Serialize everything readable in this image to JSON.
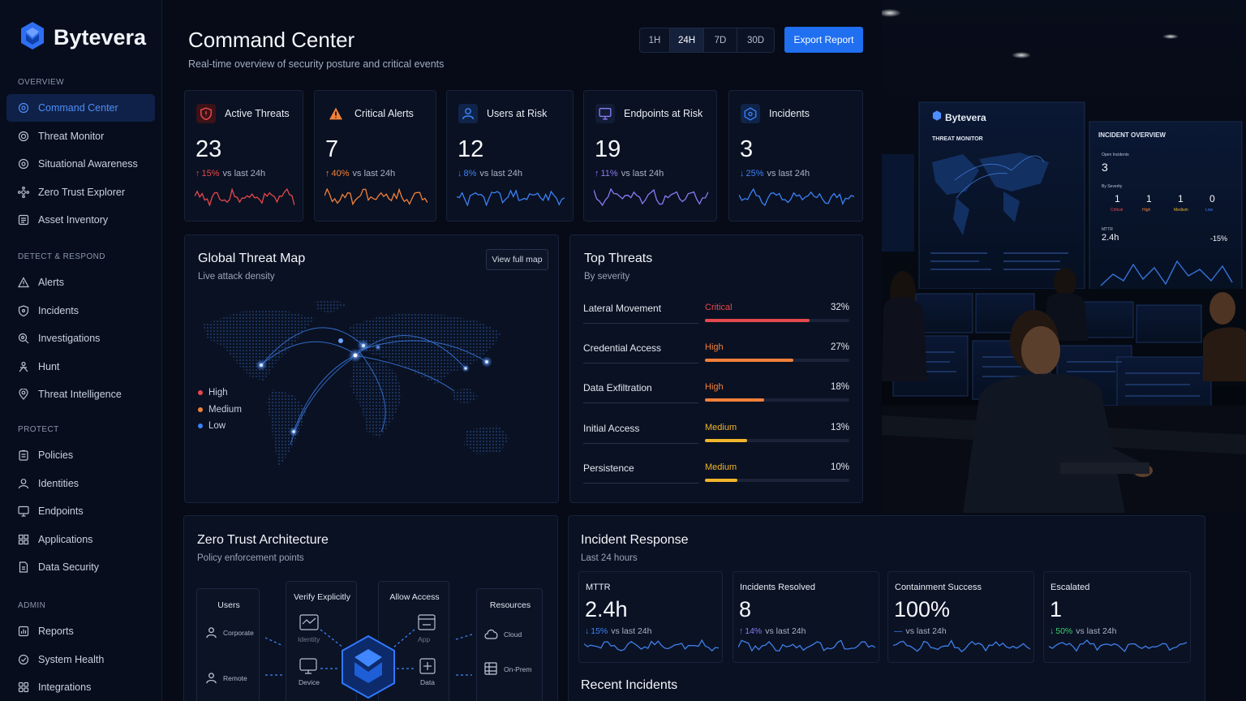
{
  "brand": {
    "name": "Bytevera"
  },
  "sidebar": {
    "sections": [
      {
        "label": "OVERVIEW",
        "items": [
          {
            "label": "Command Center",
            "icon": "target-icon",
            "active": true
          },
          {
            "label": "Threat Monitor",
            "icon": "radar-icon"
          },
          {
            "label": "Situational Awareness",
            "icon": "eye-icon"
          },
          {
            "label": "Zero Trust Explorer",
            "icon": "network-icon"
          },
          {
            "label": "Asset Inventory",
            "icon": "list-icon"
          }
        ]
      },
      {
        "label": "DETECT & RESPOND",
        "items": [
          {
            "label": "Alerts",
            "icon": "warning-icon"
          },
          {
            "label": "Incidents",
            "icon": "shield-icon"
          },
          {
            "label": "Investigations",
            "icon": "search-icon"
          },
          {
            "label": "Hunt",
            "icon": "crosshair-icon"
          },
          {
            "label": "Threat Intelligence",
            "icon": "location-icon"
          }
        ]
      },
      {
        "label": "PROTECT",
        "items": [
          {
            "label": "Policies",
            "icon": "clipboard-icon"
          },
          {
            "label": "Identities",
            "icon": "user-icon"
          },
          {
            "label": "Endpoints",
            "icon": "monitor-icon"
          },
          {
            "label": "Applications",
            "icon": "grid-icon"
          },
          {
            "label": "Data Security",
            "icon": "file-lock-icon"
          }
        ]
      },
      {
        "label": "ADMIN",
        "items": [
          {
            "label": "Reports",
            "icon": "chart-icon"
          },
          {
            "label": "System Health",
            "icon": "heart-check-icon"
          },
          {
            "label": "Integrations",
            "icon": "puzzle-icon"
          }
        ]
      }
    ]
  },
  "header": {
    "title": "Command Center",
    "subtitle": "Real-time overview of security posture and critical events",
    "ranges": [
      "1H",
      "24H",
      "7D",
      "30D"
    ],
    "selected_range": "24H",
    "export_label": "Export Report"
  },
  "kpis": [
    {
      "label": "Active Threats",
      "value": "23",
      "delta": "15%",
      "dir": "up",
      "note": "vs last 24h",
      "color": "#e5484d",
      "icon": "shield-alert-icon"
    },
    {
      "label": "Critical Alerts",
      "value": "7",
      "delta": "40%",
      "dir": "up",
      "note": "vs last 24h",
      "color": "#f2803a",
      "icon": "warning-icon"
    },
    {
      "label": "Users at Risk",
      "value": "12",
      "delta": "8%",
      "dir": "down",
      "note": "vs last 24h",
      "color": "#3b82f6",
      "icon": "user-icon"
    },
    {
      "label": "Endpoints at Risk",
      "value": "19",
      "delta": "11%",
      "dir": "up",
      "note": "vs last 24h",
      "color": "#8b7bf6",
      "icon": "monitor-icon"
    },
    {
      "label": "Incidents",
      "value": "3",
      "delta": "25%",
      "dir": "down",
      "note": "vs last 24h",
      "color": "#3b82f6",
      "icon": "shield-b-icon"
    }
  ],
  "map": {
    "title": "Global Threat Map",
    "subtitle": "Live attack density",
    "button": "View full map",
    "legend": [
      {
        "label": "High",
        "color": "#e5484d"
      },
      {
        "label": "Medium",
        "color": "#f2803a"
      },
      {
        "label": "Low",
        "color": "#3b82f6"
      }
    ]
  },
  "top_threats": {
    "title": "Top Threats",
    "subtitle": "By severity",
    "rows": [
      {
        "name": "Lateral Movement",
        "severity": "Critical",
        "pct": "32%",
        "value": 32,
        "color": "#e5484d"
      },
      {
        "name": "Credential Access",
        "severity": "High",
        "pct": "27%",
        "value": 27,
        "color": "#f2803a"
      },
      {
        "name": "Data Exfiltration",
        "severity": "High",
        "pct": "18%",
        "value": 18,
        "color": "#f2803a"
      },
      {
        "name": "Initial Access",
        "severity": "Medium",
        "pct": "13%",
        "value": 13,
        "color": "#f1b52b"
      },
      {
        "name": "Persistence",
        "severity": "Medium",
        "pct": "10%",
        "value": 10,
        "color": "#f1b52b"
      }
    ]
  },
  "zero_trust": {
    "title": "Zero Trust Architecture",
    "subtitle": "Policy enforcement points",
    "users": {
      "title": "Users",
      "items": [
        "Corporate",
        "Remote"
      ]
    },
    "verify": {
      "title": "Verify Explicitly",
      "items": [
        "Identity",
        "Device"
      ]
    },
    "allow": {
      "title": "Allow Access",
      "items": [
        "App",
        "Data"
      ]
    },
    "resources": {
      "title": "Resources",
      "items": [
        "Cloud",
        "On-Prem"
      ]
    }
  },
  "incident_response": {
    "title": "Incident Response",
    "subtitle": "Last 24 hours",
    "cards": [
      {
        "label": "MTTR",
        "value": "2.4h",
        "delta": "15%",
        "dir": "down",
        "note": "vs last 24h",
        "color": "#3b82f6"
      },
      {
        "label": "Incidents Resolved",
        "value": "8",
        "delta": "14%",
        "dir": "up",
        "note": "vs last 24h",
        "color": "#8b7bf6"
      },
      {
        "label": "Containment Success",
        "value": "100%",
        "delta": "—",
        "dir": "flat",
        "note": "vs last 24h",
        "color": "#3b82f6"
      },
      {
        "label": "Escalated",
        "value": "1",
        "delta": "50%",
        "dir": "down",
        "note": "vs last 24h",
        "color": "#3ecf6e"
      }
    ],
    "recent_title": "Recent Incidents"
  },
  "photo": {
    "brand": "Bytevera",
    "left_title": "THREAT MONITOR",
    "right_title": "INCIDENT OVERVIEW",
    "open_label": "Open Incidents",
    "open_value": "3",
    "sev_label": "By Severity",
    "sev": [
      {
        "v": "1",
        "l": "Critical",
        "c": "#e5484d"
      },
      {
        "v": "1",
        "l": "High",
        "c": "#f2803a"
      },
      {
        "v": "1",
        "l": "Medium",
        "c": "#f1b52b"
      },
      {
        "v": "0",
        "l": "Low",
        "c": "#3b82f6"
      }
    ],
    "mttr_label": "MTTR",
    "mttr_value": "2.4h",
    "mttr_delta": "-15%"
  }
}
